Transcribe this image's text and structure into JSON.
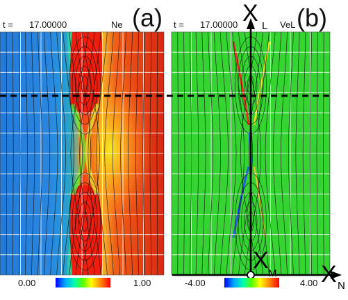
{
  "panel_a": {
    "time_label": "t =",
    "time_value": "17.00000",
    "variable": "Ne",
    "panel_label": "(a)",
    "colorbar": {
      "min": "0.00",
      "max": "1.00"
    }
  },
  "panel_b": {
    "time_label": "t =",
    "time_value": "17.00000",
    "variable": "VeL",
    "panel_label": "(b)",
    "colorbar": {
      "min": "-4.00",
      "max": "4.00"
    }
  },
  "axes": {
    "x_letter": "X",
    "l_sub": "L",
    "m_sub": "M",
    "n_sub": "N"
  },
  "colors": {
    "cmap": [
      "#0000ff",
      "#00bfff",
      "#00ff80",
      "#80ff00",
      "#ffff00",
      "#ff8000",
      "#ff0000"
    ],
    "blue_region": "#2277dd",
    "red_region": "#dd2211",
    "green_region": "#33dd33",
    "grid": "#ffffff",
    "dashed_line": "#000000"
  }
}
